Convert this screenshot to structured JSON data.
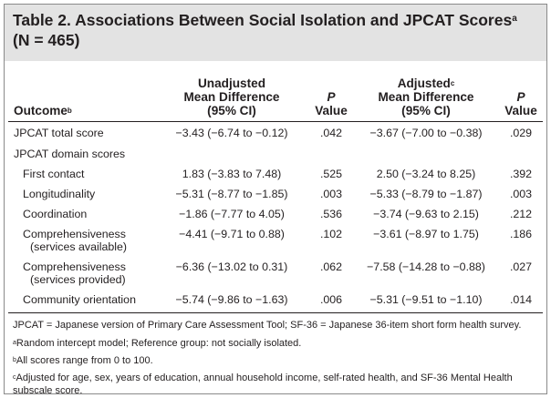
{
  "title": {
    "text": "Table 2. Associations Between Social Isolation and JPCAT Scores",
    "sup": "a",
    "line2": "(N = 465)"
  },
  "headers": {
    "outcome": "Outcome",
    "outcome_sup": "b",
    "unadj_line1": "Unadjusted",
    "unadj_line2": "Mean Difference",
    "unadj_line3": "(95% CI)",
    "p1_line1": "P",
    "p1_line2": "Value",
    "adj_line1": "Adjusted",
    "adj_sup": "c",
    "adj_line2": "Mean Difference",
    "adj_line3": "(95% CI)",
    "p2_line1": "P",
    "p2_line2": "Value"
  },
  "rows": [
    {
      "outcome": "JPCAT total score",
      "unadj": "−3.43 (−6.74 to −0.12)",
      "p1": ".042",
      "adj": "−3.67 (−7.00 to −0.38)",
      "p2": ".029"
    },
    {
      "outcome": "JPCAT domain scores",
      "unadj": "",
      "p1": "",
      "adj": "",
      "p2": ""
    },
    {
      "outcome": "First contact",
      "unadj": "1.83 (−3.83 to 7.48)",
      "p1": ".525",
      "adj": "2.50 (−3.24 to 8.25)",
      "p2": ".392"
    },
    {
      "outcome": "Longitudinality",
      "unadj": "−5.31 (−8.77 to −1.85)",
      "p1": ".003",
      "adj": "−5.33 (−8.79 to −1.87)",
      "p2": ".003"
    },
    {
      "outcome": "Coordination",
      "unadj": "−1.86 (−7.77 to 4.05)",
      "p1": ".536",
      "adj": "−3.74 (−9.63 to 2.15)",
      "p2": ".212"
    },
    {
      "outcome": "Comprehensiveness",
      "outcome2": "(services available)",
      "unadj": "−4.41 (−9.71 to 0.88)",
      "p1": ".102",
      "adj": "−3.61 (−8.97 to 1.75)",
      "p2": ".186"
    },
    {
      "outcome": "Comprehensiveness",
      "outcome2": "(services provided)",
      "unadj": "−6.36 (−13.02 to 0.31)",
      "p1": ".062",
      "adj": "−7.58 (−14.28 to −0.88)",
      "p2": ".027"
    },
    {
      "outcome": "Community orientation",
      "unadj": "−5.74 (−9.86 to −1.63)",
      "p1": ".006",
      "adj": "−5.31 (−9.51 to −1.10)",
      "p2": ".014"
    }
  ],
  "footer": {
    "abbrev": "JPCAT = Japanese version of Primary Care Assessment Tool; SF-36 = Japanese 36-item short form health survey.",
    "note_a_sup": "a",
    "note_a": "Random intercept model; Reference group: not socially isolated.",
    "note_b_sup": "b",
    "note_b": "All scores range from 0 to 100.",
    "note_c_sup": "c",
    "note_c": "Adjusted for age, sex, years of education, annual household income, self-rated health, and SF-36 Mental Health subscale score."
  }
}
